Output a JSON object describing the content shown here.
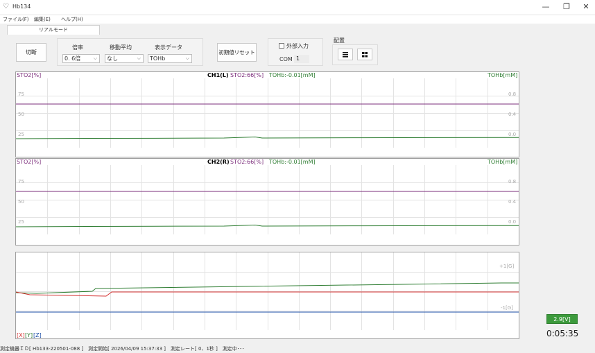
{
  "window": {
    "title": "Hb134",
    "controls": [
      "—",
      "❐",
      "✕"
    ]
  },
  "menu": [
    "ファイル(F)",
    "編集(E)",
    "ヘルプ(H)"
  ],
  "tab": "リアルモード",
  "toolbar": {
    "disconnect_label": "切断",
    "magnification": {
      "label": "倍率",
      "value": "0. 6倍"
    },
    "moving_average": {
      "label": "移動平均",
      "value": "なし"
    },
    "display_data": {
      "label": "表示データ",
      "value": "TOHb"
    },
    "reset_label": "初期値リセット",
    "external_input_label": "外部入力",
    "com_label": "COM",
    "com_value": "1",
    "layout_label": "配置"
  },
  "channels": [
    {
      "left_unit": "STO2[%]",
      "title_ch": "CH1(L)",
      "title_sto2": "STO2:66[%]",
      "title_tohb": "TOHb:-0.01[mM]",
      "right_unit": "TOHb[mM]",
      "left_ticks": [
        "75",
        "50",
        "25"
      ],
      "right_ticks": [
        "0.8",
        "0.4",
        "0.0"
      ]
    },
    {
      "left_unit": "STO2[%]",
      "title_ch": "CH2(R)",
      "title_sto2": "STO2:66[%]",
      "title_tohb": "TOHb:-0.01[mM]",
      "right_unit": "TOHb[mM]",
      "left_ticks": [
        "75",
        "50",
        "25"
      ],
      "right_ticks": [
        "0.8",
        "0.4",
        "0.0"
      ]
    }
  ],
  "accel": {
    "tick_top": "+1[G]",
    "tick_bottom": "-1[G]",
    "legend_x": "[X]",
    "legend_y": "[Y]",
    "legend_z": "[Z]"
  },
  "voltage": "2.9[V]",
  "elapsed": "0:05:35",
  "status_bar": "測定機器ＩＤ[ Hb133-220501-088 ]　測定開始[ 2026/04/09 15:37:33 ]　測定レート[ 0、1秒 ]　測定中･･･",
  "colors": {
    "sto2": "#7b2d7b",
    "tohb": "#2e7d32",
    "accel_x": "#d32f2f",
    "accel_y": "#2e7d32",
    "accel_z": "#1e4fa8",
    "voltage_bg": "#3c9a3c"
  },
  "icons": {
    "app": "stethoscope-icon",
    "layout_rows": "rows-layout-icon",
    "layout_grid": "grid-layout-icon"
  }
}
